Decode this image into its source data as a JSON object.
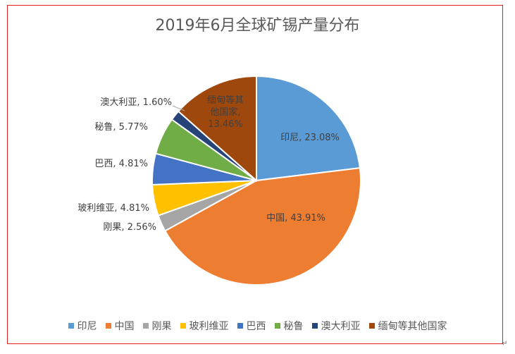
{
  "chart_data": {
    "type": "pie",
    "title": "2019年6月全球矿锡产量分布",
    "slices": [
      {
        "name": "印尼",
        "value": 23.08,
        "label": "印尼, 23.08%",
        "color": "#5b9bd5"
      },
      {
        "name": "中国",
        "value": 43.91,
        "label": "中国, 43.91%",
        "color": "#ed7d31"
      },
      {
        "name": "刚果",
        "value": 2.56,
        "label": "刚果, 2.56%",
        "color": "#a5a5a5"
      },
      {
        "name": "玻利维亚",
        "value": 4.81,
        "label": "玻利维亚, 4.81%",
        "color": "#ffc000"
      },
      {
        "name": "巴西",
        "value": 4.81,
        "label": "巴西, 4.81%",
        "color": "#4472c4"
      },
      {
        "name": "秘鲁",
        "value": 5.77,
        "label": "秘鲁, 5.77%",
        "color": "#70ad47"
      },
      {
        "name": "澳大利亚",
        "value": 1.6,
        "label": "澳大利亚, 1.60%",
        "color": "#264478"
      },
      {
        "name": "缅甸等其他国家",
        "value": 13.46,
        "label": "缅甸等其他国家, 13.46%",
        "label_lines": [
          "缅甸等其",
          "他国家,",
          "13.46%"
        ],
        "color": "#9e480e"
      }
    ],
    "legend_position": "bottom"
  },
  "page": {
    "enter_mark": "↵"
  }
}
